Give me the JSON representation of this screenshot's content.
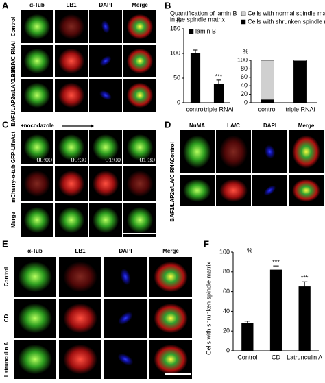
{
  "panels": {
    "a": {
      "letter": "A",
      "columns": [
        "α-Tub",
        "LB1",
        "DAPI",
        "Merge"
      ],
      "rows": [
        "Control",
        "LB1/LA/C RNAi",
        "BAF1/LAP2α/LA/C RNAi"
      ]
    },
    "b": {
      "letter": "B"
    },
    "c": {
      "letter": "C",
      "title": "+nocodazole",
      "rows": [
        "GFP-LifeAct",
        "mCherry-α-tub",
        "Merge"
      ],
      "times": [
        "00:00",
        "00:30",
        "01:00",
        "01:30"
      ]
    },
    "d": {
      "letter": "D",
      "columns": [
        "NuMA",
        "LA/C",
        "DAPI",
        "Merge"
      ],
      "rows": [
        "Control",
        "BAF1/LAP2α/LA/C RNAi"
      ]
    },
    "e": {
      "letter": "E",
      "columns": [
        "α-Tub",
        "LB1",
        "DAPI",
        "Merge"
      ],
      "rows": [
        "Control",
        "CD",
        "Latrunculin A"
      ]
    },
    "f": {
      "letter": "F"
    }
  },
  "chart_data": [
    {
      "type": "bar",
      "title_lines": [
        "Quantification of lamin B",
        "in the spindle matrix"
      ],
      "y_unit": "%",
      "categories": [
        "control",
        "triple RNAi"
      ],
      "series": [
        {
          "name": "lamin B",
          "color": "#000000",
          "values": [
            100,
            38
          ],
          "errors": [
            7,
            8
          ]
        }
      ],
      "value_annotations": [
        null,
        "***"
      ],
      "ylim": [
        0,
        150
      ],
      "yticks": [
        0,
        50,
        100,
        150
      ]
    },
    {
      "type": "stacked_bar",
      "y_unit": "%",
      "categories": [
        "control",
        "triple RNAi"
      ],
      "series": [
        {
          "name": "Cells with shrunken spindle matrix",
          "color": "#000000",
          "values": [
            7,
            98
          ],
          "errors": [
            2,
            1
          ]
        },
        {
          "name": "Cells with normal spindle matrix",
          "color": "#d0d0d0",
          "values": [
            93,
            2
          ]
        }
      ],
      "ylim": [
        0,
        100
      ],
      "yticks": [
        0,
        20,
        40,
        60,
        80,
        100
      ]
    },
    {
      "type": "bar",
      "y_label": "Cells with shrunken spindle matrix",
      "y_unit": "%",
      "categories": [
        "Control",
        "CD",
        "Latrunculin A"
      ],
      "series": [
        {
          "color": "#000000",
          "values": [
            28,
            82,
            65
          ],
          "errors": [
            2,
            4,
            5
          ]
        }
      ],
      "value_annotations": [
        null,
        "***",
        "***"
      ],
      "ylim": [
        0,
        100
      ],
      "yticks": [
        0,
        20,
        40,
        60,
        80,
        100
      ]
    }
  ]
}
